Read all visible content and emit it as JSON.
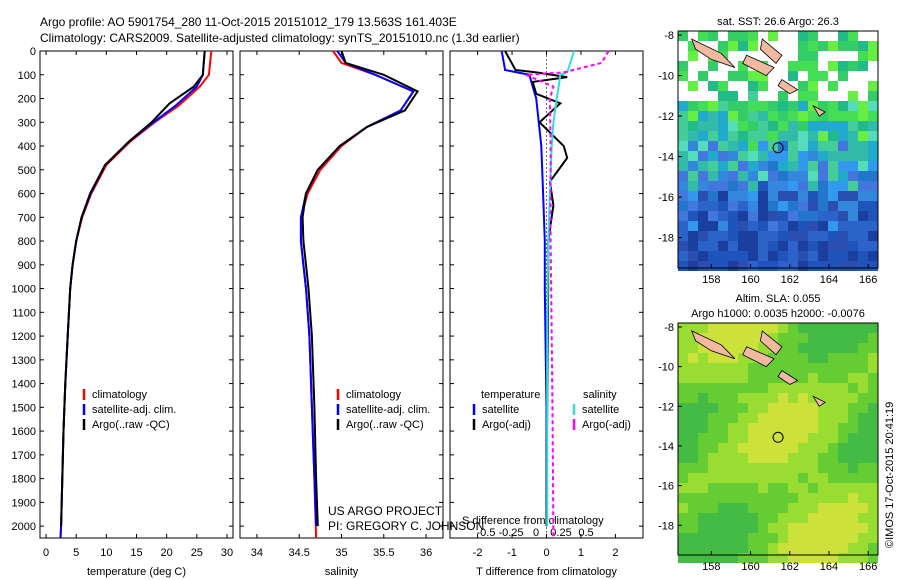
{
  "header": {
    "line1": "Argo profile: AO 5901754_280 11-Oct-2015 20151012_179 13.563S 161.403E",
    "line2": "Climatology: CARS2009. Satellite-adjusted climatology: synTS_20151010.nc (1.3d earlier)"
  },
  "credits": {
    "line1": "US ARGO PROJECT",
    "line2": "PI: GREGORY C. JOHNSON",
    "imos": "©IMOS 17-Oct-2015 20:41:19"
  },
  "colors": {
    "climatology": "#ff0000",
    "satellite": "#0000ff",
    "argo": "#000000",
    "sal_satellite": "#33dddd",
    "sal_argo": "#ff00ff"
  },
  "depth_ticks": [
    "0",
    "100",
    "200",
    "300",
    "400",
    "500",
    "600",
    "700",
    "800",
    "900",
    "1000",
    "1100",
    "1200",
    "1300",
    "1400",
    "1500",
    "1600",
    "1700",
    "1800",
    "1900",
    "2000"
  ],
  "chart_data": [
    {
      "type": "line",
      "panel": "temperature",
      "xlabel": "temperature (deg C)",
      "xlim": [
        -1,
        31
      ],
      "ylim": [
        0,
        2050
      ],
      "y_reversed": true,
      "xticks": [
        "0",
        "5",
        "10",
        "15",
        "20",
        "25",
        "30"
      ],
      "legend": [
        "climatology",
        "satellite-adj. clim.",
        "Argo(..raw -QC)"
      ],
      "series": [
        {
          "name": "climatology",
          "color": "#ff0000",
          "points": [
            [
              27.4,
              0
            ],
            [
              27.0,
              100
            ],
            [
              25.5,
              150
            ],
            [
              22.0,
              230
            ],
            [
              18.0,
              300
            ],
            [
              14.0,
              380
            ],
            [
              10.0,
              480
            ],
            [
              7.5,
              600
            ],
            [
              6.0,
              700
            ],
            [
              5.0,
              800
            ],
            [
              4.4,
              900
            ],
            [
              4.0,
              1000
            ],
            [
              3.6,
              1200
            ],
            [
              3.2,
              1400
            ],
            [
              2.9,
              1600
            ],
            [
              2.7,
              1800
            ],
            [
              2.5,
              2000
            ],
            [
              2.4,
              2050
            ]
          ]
        },
        {
          "name": "satellite-adj. clim.",
          "color": "#0000ff",
          "points": [
            [
              26.3,
              0
            ],
            [
              26.0,
              100
            ],
            [
              25.0,
              150
            ],
            [
              21.5,
              230
            ],
            [
              17.8,
              300
            ],
            [
              13.8,
              380
            ],
            [
              9.8,
              480
            ],
            [
              7.4,
              600
            ],
            [
              5.9,
              700
            ],
            [
              5.0,
              800
            ],
            [
              4.4,
              900
            ],
            [
              4.0,
              1000
            ],
            [
              3.6,
              1200
            ],
            [
              3.2,
              1400
            ],
            [
              2.9,
              1600
            ],
            [
              2.7,
              1800
            ],
            [
              2.5,
              2000
            ],
            [
              2.4,
              2050
            ]
          ]
        },
        {
          "name": "Argo(..raw -QC)",
          "color": "#000000",
          "points": [
            [
              26.3,
              0
            ],
            [
              26.0,
              100
            ],
            [
              24.5,
              150
            ],
            [
              20.5,
              220
            ],
            [
              17.5,
              300
            ],
            [
              13.8,
              380
            ],
            [
              9.8,
              480
            ],
            [
              7.3,
              600
            ],
            [
              5.9,
              700
            ],
            [
              5.0,
              800
            ],
            [
              4.4,
              900
            ],
            [
              4.0,
              1000
            ],
            [
              3.6,
              1200
            ],
            [
              3.2,
              1400
            ],
            [
              2.9,
              1600
            ],
            [
              2.7,
              1800
            ],
            [
              2.5,
              2000
            ]
          ]
        }
      ]
    },
    {
      "type": "line",
      "panel": "salinity",
      "xlabel": "salinity",
      "xlim": [
        33.8,
        36.2
      ],
      "ylim": [
        0,
        2050
      ],
      "y_reversed": true,
      "xticks": [
        "34",
        "34.5",
        "35",
        "35.5",
        "36"
      ],
      "legend": [
        "climatology",
        "satellite-adj. clim.",
        "Argo(..raw -QC)"
      ],
      "series": [
        {
          "name": "climatology",
          "color": "#ff0000",
          "points": [
            [
              34.9,
              0
            ],
            [
              35.0,
              50
            ],
            [
              35.4,
              100
            ],
            [
              35.85,
              170
            ],
            [
              35.7,
              250
            ],
            [
              35.3,
              320
            ],
            [
              35.0,
              400
            ],
            [
              34.75,
              500
            ],
            [
              34.6,
              600
            ],
            [
              34.52,
              700
            ],
            [
              34.52,
              800
            ],
            [
              34.55,
              900
            ],
            [
              34.58,
              1000
            ],
            [
              34.62,
              1200
            ],
            [
              34.65,
              1500
            ],
            [
              34.68,
              1800
            ],
            [
              34.7,
              2050
            ]
          ]
        },
        {
          "name": "satellite-adj. clim.",
          "color": "#0000ff",
          "points": [
            [
              34.95,
              0
            ],
            [
              35.05,
              50
            ],
            [
              35.4,
              100
            ],
            [
              35.85,
              170
            ],
            [
              35.7,
              250
            ],
            [
              35.3,
              320
            ],
            [
              34.98,
              400
            ],
            [
              34.72,
              500
            ],
            [
              34.58,
              600
            ],
            [
              34.52,
              700
            ],
            [
              34.52,
              800
            ],
            [
              34.55,
              900
            ],
            [
              34.58,
              1000
            ],
            [
              34.62,
              1200
            ],
            [
              34.65,
              1500
            ],
            [
              34.68,
              1800
            ],
            [
              34.7,
              2000
            ]
          ]
        },
        {
          "name": "Argo(..raw -QC)",
          "color": "#000000",
          "points": [
            [
              35.0,
              0
            ],
            [
              35.05,
              50
            ],
            [
              35.5,
              100
            ],
            [
              35.9,
              170
            ],
            [
              35.75,
              250
            ],
            [
              35.3,
              320
            ],
            [
              34.98,
              400
            ],
            [
              34.72,
              500
            ],
            [
              34.58,
              600
            ],
            [
              34.54,
              700
            ],
            [
              34.55,
              800
            ],
            [
              34.58,
              900
            ],
            [
              34.61,
              1000
            ],
            [
              34.65,
              1200
            ],
            [
              34.68,
              1500
            ],
            [
              34.7,
              1800
            ],
            [
              34.72,
              2000
            ]
          ]
        }
      ]
    },
    {
      "type": "line",
      "panel": "difference",
      "xlabel": "T difference from climatology",
      "xlabel_top": "S difference from climatology",
      "xlim": [
        -2.8,
        2.8
      ],
      "ylim": [
        0,
        2050
      ],
      "y_reversed": true,
      "xticks": [
        "-2",
        "-1",
        "0",
        "1",
        "2"
      ],
      "xticks_top": [
        "-0.5",
        "-0.25",
        "0",
        "0.25",
        "0.5"
      ],
      "legend_headers": [
        "temperature",
        "salinity"
      ],
      "legend": [
        "satellite",
        "Argo(-adj)",
        "satellite",
        "Argo(-adj)"
      ],
      "series": [
        {
          "name": "satellite",
          "color": "#0000ff",
          "points": [
            [
              -1.3,
              0
            ],
            [
              -1.2,
              80
            ],
            [
              -0.5,
              100
            ],
            [
              -0.3,
              200
            ],
            [
              -0.15,
              400
            ],
            [
              -0.1,
              600
            ],
            [
              -0.05,
              800
            ],
            [
              -0.05,
              1000
            ],
            [
              0,
              1500
            ],
            [
              0,
              2000
            ]
          ]
        },
        {
          "name": "Argo(-adj)",
          "color": "#000000",
          "points": [
            [
              -1.2,
              0
            ],
            [
              -0.9,
              80
            ],
            [
              -0.3,
              90
            ],
            [
              0.6,
              110
            ],
            [
              -0.4,
              130
            ],
            [
              -0.3,
              180
            ],
            [
              0.4,
              220
            ],
            [
              -0.2,
              300
            ],
            [
              0.5,
              400
            ],
            [
              0.6,
              450
            ],
            [
              0.1,
              550
            ],
            [
              0.2,
              650
            ],
            [
              0.05,
              800
            ],
            [
              0.05,
              1000
            ],
            [
              0.02,
              1500
            ],
            [
              0,
              2000
            ]
          ]
        },
        {
          "name": "satellite",
          "color": "#33dddd",
          "points": [
            [
              0.8,
              0
            ],
            [
              0.6,
              90
            ],
            [
              0.4,
              100
            ],
            [
              0.3,
              200
            ],
            [
              0.2,
              300
            ],
            [
              0.15,
              400
            ],
            [
              0.1,
              600
            ],
            [
              0.05,
              800
            ],
            [
              0.02,
              1200
            ],
            [
              0.02,
              2000
            ]
          ]
        },
        {
          "name": "Argo(-adj)",
          "color": "#ff00ff",
          "points": [
            [
              1.8,
              0
            ],
            [
              1.6,
              50
            ],
            [
              0.5,
              90
            ],
            [
              -0.6,
              100
            ],
            [
              0.2,
              150
            ],
            [
              0.1,
              200
            ],
            [
              0.12,
              400
            ],
            [
              0.12,
              800
            ],
            [
              0.15,
              1200
            ],
            [
              0.18,
              1600
            ],
            [
              0.2,
              2050
            ]
          ]
        }
      ]
    },
    {
      "type": "heatmap",
      "panel": "sst_map",
      "title": "sat. SST: 26.6  Argo: 26.3",
      "xlim": [
        156.3,
        166.5
      ],
      "ylim": [
        -19.5,
        -7.8
      ],
      "xticks": [
        "158",
        "160",
        "162",
        "164",
        "166"
      ],
      "yticks": [
        "-8",
        "-10",
        "-12",
        "-14",
        "-16",
        "-18"
      ],
      "marker": [
        161.403,
        -13.563
      ]
    },
    {
      "type": "heatmap",
      "panel": "sla_map",
      "title_line1": "Altim. SLA: 0.055",
      "title_line2": "Argo h1000: 0.0035 h2000: -0.0076",
      "xlim": [
        156.3,
        166.5
      ],
      "ylim": [
        -19.5,
        -7.8
      ],
      "xticks": [
        "158",
        "160",
        "162",
        "164",
        "166"
      ],
      "yticks": [
        "-8",
        "-10",
        "-12",
        "-14",
        "-16",
        "-18"
      ],
      "marker": [
        161.403,
        -13.563
      ]
    }
  ]
}
